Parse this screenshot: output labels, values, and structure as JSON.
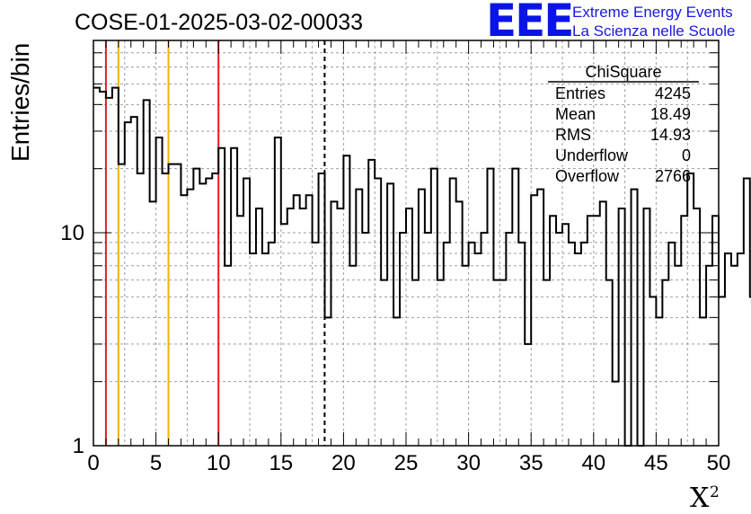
{
  "header": {
    "run_title": "COSE-01-2025-03-02-00033",
    "logo_text": "EEE",
    "logo_line1": "Extreme Energy Events",
    "logo_line2": "La Scienza nelle Scuole"
  },
  "chart_data": {
    "type": "histogram",
    "ylabel": "Entries/bin",
    "xlabel": "X",
    "xlabel_superscript": "2",
    "xlim": [
      0,
      50
    ],
    "ylim": [
      1,
      80
    ],
    "y_scale": "log",
    "grid": true,
    "x_tick_labels": [
      "0",
      "5",
      "10",
      "15",
      "20",
      "25",
      "30",
      "35",
      "40",
      "45",
      "50"
    ],
    "y_tick_labels": [
      "1",
      "10"
    ],
    "bin_width": 0.5,
    "values": [
      48,
      46,
      43,
      48,
      21,
      33,
      35,
      19,
      42,
      14,
      28,
      19,
      21,
      21,
      15,
      16,
      20,
      17,
      18,
      19,
      25,
      7,
      25,
      12,
      18,
      8,
      13,
      8,
      9,
      28,
      11,
      13,
      15,
      13,
      15,
      9,
      19,
      4,
      14,
      13,
      23,
      7,
      16,
      10,
      22,
      18,
      6,
      17,
      4,
      10,
      13,
      6,
      16,
      10,
      20,
      6,
      9,
      18,
      14,
      7,
      9,
      8,
      10,
      20,
      6,
      6,
      10,
      20,
      9,
      3,
      15,
      16,
      6,
      12,
      10,
      11,
      9,
      8,
      9,
      12,
      12,
      14,
      6,
      2,
      13,
      0,
      16,
      0,
      13,
      5,
      4,
      6,
      9,
      7,
      12,
      19,
      13,
      4,
      7,
      12,
      5,
      8,
      7,
      8,
      18,
      5,
      18,
      5,
      4,
      4,
      5,
      3,
      8,
      10,
      6,
      11,
      3,
      7,
      11,
      8,
      3,
      13,
      3,
      12,
      2,
      2,
      9,
      18,
      13,
      8,
      8,
      3,
      3,
      12,
      12,
      19,
      2,
      1,
      12,
      0,
      7,
      10,
      6,
      5,
      10,
      16,
      10,
      18,
      8,
      8
    ],
    "vlines": [
      {
        "x": 1,
        "color": "#e02020",
        "style": "solid"
      },
      {
        "x": 2,
        "color": "#f0b400",
        "style": "solid"
      },
      {
        "x": 6,
        "color": "#f0b400",
        "style": "solid"
      },
      {
        "x": 10,
        "color": "#e02020",
        "style": "solid"
      },
      {
        "x": 18.49,
        "color": "#000000",
        "style": "dashed"
      }
    ],
    "stats_box": {
      "title": "ChiSquare",
      "rows": [
        {
          "label": "Entries",
          "value": "4245"
        },
        {
          "label": "Mean",
          "value": "18.49"
        },
        {
          "label": "RMS",
          "value": "14.93"
        },
        {
          "label": "Underflow",
          "value": "0"
        },
        {
          "label": "Overflow",
          "value": "2766"
        }
      ]
    }
  }
}
